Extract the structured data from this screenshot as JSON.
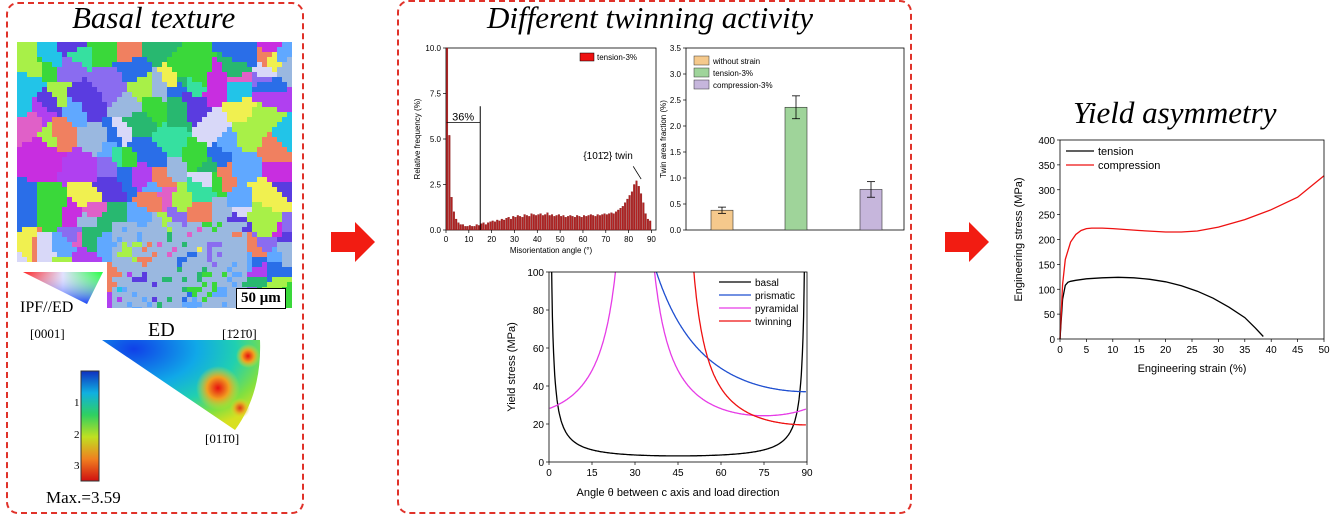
{
  "panel_left": {
    "title": "Basal texture",
    "scale_bar": "50 μm",
    "ipf_label": "IPF//ED",
    "pf_title": "ED",
    "corner_0001": "[0001]",
    "corner_m1210": "[1̄21̄0]",
    "corner_01m10": "[011̄0]",
    "colorbar_ticks": [
      "1",
      "2",
      "3"
    ],
    "max_label": "Max.=3.59"
  },
  "panel_mid": {
    "title": "Different twinning activity"
  },
  "panel_right": {
    "title": "Yield asymmetry"
  },
  "colors": {
    "dash_border": "#e0322a",
    "arrow": "#f21c12",
    "tension_bar": "#ee1111",
    "without_strain": "#f5c98c",
    "tension_3": "#9fd49a",
    "compression_3": "#c6b6dc",
    "basal": "#000000",
    "prismatic": "#1f4fd0",
    "pyramidal": "#e63ce6",
    "twinning": "#ee1111"
  },
  "chart_data": [
    {
      "type": "bar",
      "id": "misorientation",
      "xlabel": "Misorientation angle (°)",
      "ylabel": "Relative frequency (%)",
      "xlim": [
        0,
        92
      ],
      "ylim": [
        0,
        10
      ],
      "xticks": [
        "0",
        "10",
        "20",
        "30",
        "40",
        "50",
        "60",
        "70",
        "80",
        "90"
      ],
      "yticks": [
        "0.0",
        "2.5",
        "5.0",
        "7.5",
        "10.0"
      ],
      "legend": [
        "tension-3%"
      ],
      "annotation_low": "36%",
      "annotation_twin": "{101̄2} twin",
      "bins": [
        1,
        2,
        3,
        4,
        5,
        6,
        7,
        8,
        9,
        10,
        11,
        12,
        13,
        14,
        15,
        16,
        17,
        18,
        19,
        20,
        21,
        22,
        23,
        24,
        25,
        26,
        27,
        28,
        29,
        30,
        31,
        32,
        33,
        34,
        35,
        36,
        37,
        38,
        39,
        40,
        41,
        42,
        43,
        44,
        45,
        46,
        47,
        48,
        49,
        50,
        51,
        52,
        53,
        54,
        55,
        56,
        57,
        58,
        59,
        60,
        61,
        62,
        63,
        64,
        65,
        66,
        67,
        68,
        69,
        70,
        71,
        72,
        73,
        74,
        75,
        76,
        77,
        78,
        79,
        80,
        81,
        82,
        83,
        84,
        85,
        86,
        87,
        88,
        89,
        90
      ],
      "values": [
        10.0,
        5.2,
        1.8,
        1.0,
        0.6,
        0.4,
        0.3,
        0.3,
        0.2,
        0.2,
        0.25,
        0.2,
        0.2,
        0.3,
        0.25,
        0.35,
        0.4,
        0.3,
        0.4,
        0.45,
        0.5,
        0.45,
        0.55,
        0.5,
        0.6,
        0.55,
        0.65,
        0.7,
        0.6,
        0.75,
        0.7,
        0.8,
        0.75,
        0.7,
        0.85,
        0.8,
        0.75,
        0.9,
        0.85,
        0.8,
        0.85,
        0.9,
        0.8,
        0.85,
        0.95,
        0.8,
        0.85,
        0.75,
        0.8,
        0.85,
        0.75,
        0.8,
        0.7,
        0.75,
        0.8,
        0.75,
        0.7,
        0.8,
        0.75,
        0.7,
        0.8,
        0.75,
        0.8,
        0.85,
        0.8,
        0.75,
        0.85,
        0.8,
        0.85,
        0.9,
        0.85,
        0.9,
        0.95,
        0.9,
        1.0,
        1.1,
        1.2,
        1.3,
        1.5,
        1.7,
        1.9,
        2.1,
        2.5,
        2.7,
        2.4,
        2.0,
        1.5,
        0.9,
        0.6,
        0.5
      ]
    },
    {
      "type": "bar",
      "id": "twin_area",
      "ylabel": "Twin area fraction (%)",
      "ylim": [
        0,
        3.5
      ],
      "yticks": [
        "0.0",
        "0.5",
        "1.0",
        "1.5",
        "2.0",
        "2.5",
        "3.0",
        "3.5"
      ],
      "categories": [
        "without strain",
        "tension-3%",
        "compression-3%"
      ],
      "values": [
        0.38,
        2.36,
        0.78
      ],
      "errors": [
        0.06,
        0.22,
        0.15
      ]
    },
    {
      "type": "line",
      "id": "schmid",
      "xlabel": "Angle θ between c axis and load direction",
      "ylabel": "Yield stress (MPa)",
      "xlim": [
        0,
        90
      ],
      "ylim": [
        0,
        100
      ],
      "xticks": [
        "0",
        "15",
        "30",
        "45",
        "60",
        "75",
        "90"
      ],
      "yticks": [
        "0",
        "20",
        "40",
        "60",
        "80",
        "100"
      ],
      "series": [
        {
          "name": "basal",
          "crss": 1.6,
          "kind": "basal"
        },
        {
          "name": "prismatic",
          "crss": 18.5,
          "kind": "prismatic"
        },
        {
          "name": "pyramidal",
          "crss": 12.3,
          "kind": "pyramidal"
        },
        {
          "name": "twinning",
          "crss": 4.9,
          "kind": "twinning"
        }
      ]
    },
    {
      "type": "line",
      "id": "stress_strain",
      "xlabel": "Engineering strain (%)",
      "ylabel": "Engineering stress (MPa)",
      "xlim": [
        0,
        50
      ],
      "ylim": [
        0,
        400
      ],
      "xticks": [
        "0",
        "5",
        "10",
        "15",
        "20",
        "25",
        "30",
        "35",
        "40",
        "45",
        "50"
      ],
      "yticks": [
        "0",
        "50",
        "100",
        "150",
        "200",
        "250",
        "300",
        "350",
        "400"
      ],
      "series": [
        {
          "name": "tension",
          "x": [
            0,
            0.5,
            1,
            1.5,
            2,
            3,
            5,
            8,
            11,
            14,
            17,
            20,
            23,
            26,
            29,
            32,
            35,
            37,
            38.5
          ],
          "y": [
            0,
            80,
            108,
            114,
            116,
            118,
            121,
            123,
            124,
            123,
            120,
            115,
            107,
            96,
            82,
            64,
            43,
            22,
            5
          ]
        },
        {
          "name": "compression",
          "x": [
            0,
            0.5,
            1,
            2,
            3,
            4,
            5,
            6,
            8,
            10,
            15,
            20,
            23,
            26,
            30,
            35,
            40,
            45,
            50
          ],
          "y": [
            0,
            110,
            160,
            195,
            210,
            218,
            222,
            223,
            223,
            222,
            218,
            215,
            215,
            217,
            225,
            240,
            260,
            285,
            328
          ]
        }
      ]
    }
  ]
}
